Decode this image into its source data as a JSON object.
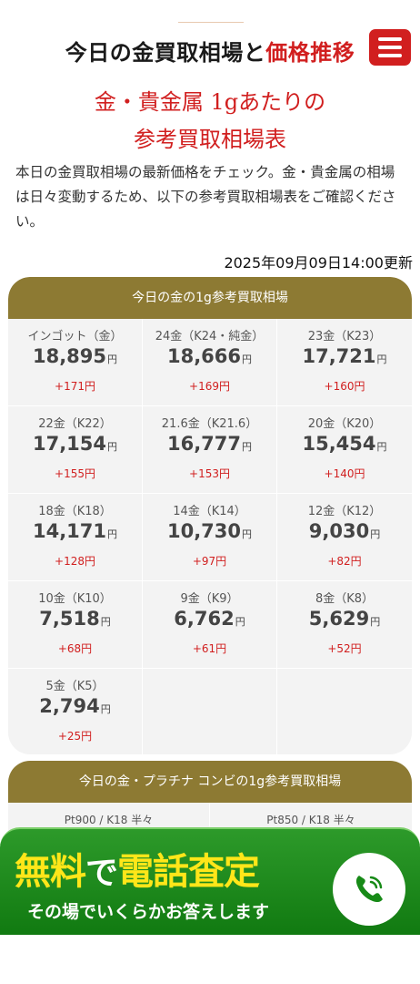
{
  "header": {
    "title_main": "今日の金買取相場と",
    "title_accent": "価格推移",
    "menu_icon": "hamburger-menu-icon"
  },
  "subtitle": {
    "line1": "金・貴金属 1gあたりの",
    "line2": "参考買取相場表"
  },
  "intro": "本日の金買取相場の最新価格をチェック。金・貴金属の相場は日々変動するため、以下の参考買取相場表をご確認ください。",
  "updated": "2025年09月09日14:00更新",
  "gold_table": {
    "header": "今日の金の1g参考買取相場",
    "unit": "円",
    "items": [
      {
        "name": "インゴット（金）",
        "price": "18,895",
        "change": "+171円"
      },
      {
        "name": "24金（K24・純金）",
        "price": "18,666",
        "change": "+169円"
      },
      {
        "name": "23金（K23）",
        "price": "17,721",
        "change": "+160円"
      },
      {
        "name": "22金（K22）",
        "price": "17,154",
        "change": "+155円"
      },
      {
        "name": "21.6金（K21.6）",
        "price": "16,777",
        "change": "+153円"
      },
      {
        "name": "20金（K20）",
        "price": "15,454",
        "change": "+140円"
      },
      {
        "name": "18金（K18）",
        "price": "14,171",
        "change": "+128円"
      },
      {
        "name": "14金（K14）",
        "price": "10,730",
        "change": "+97円"
      },
      {
        "name": "12金（K12）",
        "price": "9,030",
        "change": "+82円"
      },
      {
        "name": "10金（K10）",
        "price": "7,518",
        "change": "+68円"
      },
      {
        "name": "9金（K9）",
        "price": "6,762",
        "change": "+61円"
      },
      {
        "name": "8金（K8）",
        "price": "5,629",
        "change": "+52円"
      },
      {
        "name": "5金（K5）",
        "price": "2,794",
        "change": "+25円"
      }
    ]
  },
  "combo_table": {
    "header": "今日の金・プラチナ コンビの1g参考買取相場",
    "items": [
      {
        "name": "Pt900 / K18 半々"
      },
      {
        "name": "Pt850 / K18 半々"
      }
    ]
  },
  "cta": {
    "main_free": "無料",
    "main_de": "で",
    "main_phone": "電話査定",
    "sub": "その場でいくらかお答えします",
    "icon": "phone-icon"
  }
}
